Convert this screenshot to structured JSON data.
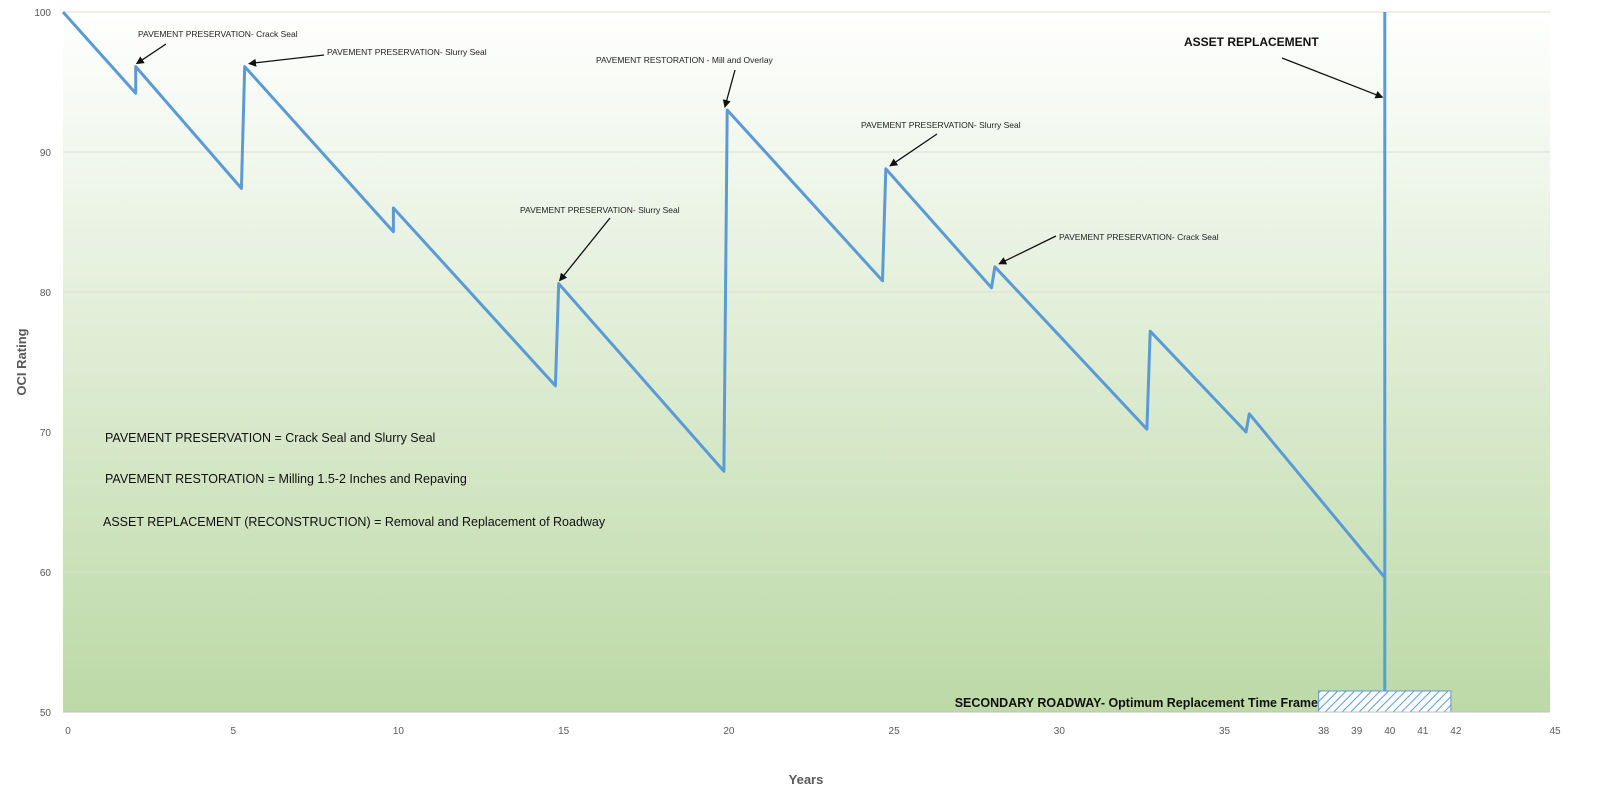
{
  "chart_data": {
    "type": "line",
    "xlabel": "Years",
    "ylabel": "OCI Rating",
    "xlim": [
      0,
      45
    ],
    "ylim": [
      50,
      100
    ],
    "x_ticks": [
      "0",
      "5",
      "10",
      "15",
      "20",
      "25",
      "30",
      "35",
      "38",
      "39",
      "40",
      "41",
      "42",
      "45"
    ],
    "x_tick_values": [
      0,
      5,
      10,
      15,
      20,
      25,
      30,
      35,
      38,
      39,
      40,
      41,
      42,
      45
    ],
    "y_ticks": [
      "50",
      "60",
      "70",
      "80",
      "90",
      "100"
    ],
    "y_tick_values": [
      50,
      60,
      70,
      80,
      90,
      100
    ],
    "grid": "horizontal",
    "line_color": "#5b9bd5",
    "background_gradient": [
      "#ffffff",
      "#bcd9a6"
    ],
    "series": [
      {
        "x": [
          0,
          2.2,
          2.2,
          5.4,
          5.5,
          10.0,
          10.0,
          14.9,
          15.0,
          20.0,
          20.1,
          24.8,
          24.9,
          28.1,
          28.2,
          32.8,
          32.9,
          35.8,
          35.9,
          40.0,
          40.0
        ],
        "y": [
          100,
          94.2,
          96.1,
          87.4,
          96.1,
          84.3,
          86.0,
          73.3,
          80.6,
          67.2,
          93.0,
          80.8,
          88.8,
          80.3,
          81.8,
          70.2,
          77.2,
          70.0,
          71.3,
          59.6,
          100
        ]
      }
    ],
    "annotations": [
      {
        "text": "PAVEMENT PRESERVATION- Crack Seal",
        "x": 2.2,
        "y": 96.1,
        "style": "small",
        "arrow": true
      },
      {
        "text": "PAVEMENT PRESERVATION- Slurry Seal",
        "x": 5.6,
        "y": 96.1,
        "style": "small",
        "arrow": true
      },
      {
        "text": "PAVEMENT RESTORATION - Mill and Overlay",
        "x": 20.0,
        "y": 93.0,
        "style": "small",
        "arrow": true
      },
      {
        "text": "PAVEMENT PRESERVATION- Slurry Seal",
        "x": 15.0,
        "y": 80.6,
        "style": "small",
        "arrow": true
      },
      {
        "text": "PAVEMENT PRESERVATION- Slurry Seal",
        "x": 25.0,
        "y": 88.8,
        "style": "small",
        "arrow": true
      },
      {
        "text": "PAVEMENT PRESERVATION- Crack Seal",
        "x": 28.3,
        "y": 81.8,
        "style": "small",
        "arrow": true
      },
      {
        "text": "ASSET REPLACEMENT",
        "x": 39.9,
        "y": 93.7,
        "style": "big",
        "arrow": true
      }
    ],
    "legend_notes": [
      "PAVEMENT PRESERVATION = Crack Seal and Slurry Seal",
      "PAVEMENT RESTORATION = Milling 1.5-2 Inches and Repaving",
      "ASSET REPLACEMENT (RECONSTRUCTION) = Removal and Replacement of Roadway"
    ],
    "replacement_window": {
      "label": "SECONDARY ROADWAY- Optimum Replacement Time Frame",
      "x_start": 38,
      "x_end": 42
    }
  }
}
